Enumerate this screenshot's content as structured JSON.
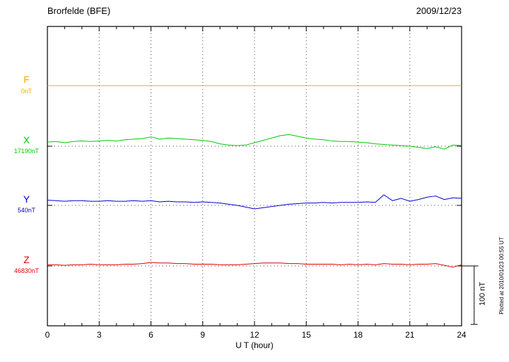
{
  "header": {
    "station": "Brorfelde (BFE)",
    "date": "2009/12/23"
  },
  "axis": {
    "xlabel": "U T (hour)"
  },
  "scale_bar": {
    "label": "100 nT",
    "value_nT": 100
  },
  "footer_note": "Plotted at 2010/01/23 00:55 UT",
  "chart_data": {
    "type": "line",
    "title": "Brorfelde (BFE) magnetogram 2009/12/23",
    "xlabel": "U T (hour)",
    "x_range": [
      0,
      24
    ],
    "x_ticks": [
      0,
      3,
      6,
      9,
      12,
      15,
      18,
      21,
      24
    ],
    "grid": "dotted vertical at 3h intervals, dotted horizontal at each component baseline",
    "scale_bar_nT": 100,
    "x": [
      0,
      0.5,
      1,
      1.5,
      2,
      2.5,
      3,
      3.5,
      4,
      4.5,
      5,
      5.5,
      6,
      6.5,
      7,
      7.5,
      8,
      8.5,
      9,
      9.5,
      10,
      10.5,
      11,
      11.5,
      12,
      12.5,
      13,
      13.5,
      14,
      14.5,
      15,
      15.5,
      16,
      16.5,
      17,
      17.5,
      18,
      18.5,
      19,
      19.5,
      20,
      20.5,
      21,
      21.5,
      22,
      22.5,
      23,
      23.5,
      24
    ],
    "series": [
      {
        "name": "F",
        "baseline_label": "0nT",
        "baseline_nT": 0,
        "color": "#FFA500",
        "values": [
          0,
          0,
          0,
          0,
          0,
          0,
          0,
          0,
          0,
          0,
          0,
          0,
          0,
          0,
          0,
          0,
          0,
          0,
          0,
          0,
          0,
          0,
          0,
          0,
          0,
          0,
          0,
          0,
          0,
          0,
          0,
          0,
          0,
          0,
          0,
          0,
          0,
          0,
          0,
          0,
          0,
          0,
          0,
          0,
          0,
          0,
          0,
          0,
          0
        ]
      },
      {
        "name": "X",
        "baseline_label": "17190nT",
        "baseline_nT": 17190,
        "color": "#00C800",
        "values": [
          7,
          8,
          6,
          8,
          9,
          8,
          9,
          10,
          9,
          11,
          12,
          13,
          16,
          12,
          14,
          13,
          12,
          11,
          10,
          8,
          4,
          2,
          1,
          2,
          6,
          10,
          14,
          18,
          20,
          17,
          14,
          12,
          11,
          9,
          8,
          8,
          7,
          6,
          4,
          3,
          2,
          1,
          0,
          -2,
          -4,
          -1,
          -5,
          2,
          1
        ]
      },
      {
        "name": "Y",
        "baseline_label": "540nT",
        "baseline_nT": 540,
        "color": "#0000CD",
        "values": [
          9,
          8,
          7,
          8,
          8,
          7,
          7,
          8,
          7,
          7,
          8,
          7,
          8,
          6,
          7,
          6,
          6,
          5,
          6,
          5,
          4,
          2,
          0,
          -3,
          -6,
          -4,
          -2,
          0,
          2,
          3,
          4,
          4,
          5,
          4,
          5,
          5,
          5,
          6,
          5,
          18,
          8,
          12,
          7,
          10,
          14,
          16,
          10,
          13,
          12
        ]
      },
      {
        "name": "Z",
        "baseline_label": "46830nT",
        "baseline_nT": 46830,
        "color": "#DC0000",
        "values": [
          2,
          2,
          1,
          2,
          2,
          3,
          2,
          2,
          2,
          3,
          3,
          4,
          6,
          5,
          5,
          4,
          4,
          3,
          3,
          3,
          2,
          2,
          2,
          3,
          4,
          5,
          5,
          5,
          4,
          4,
          3,
          3,
          3,
          3,
          2,
          3,
          2,
          3,
          2,
          4,
          3,
          3,
          2,
          3,
          3,
          4,
          1,
          -2,
          2
        ]
      }
    ]
  }
}
